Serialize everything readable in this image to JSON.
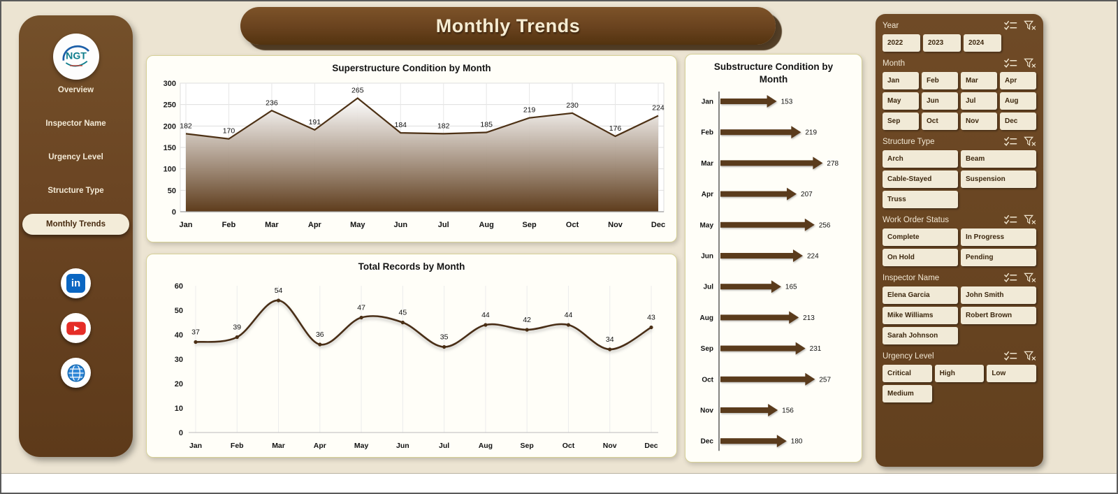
{
  "header": {
    "title": "Monthly Trends"
  },
  "sidebar": {
    "logo_text": "NGT",
    "items": [
      {
        "label": "Overview",
        "active": false
      },
      {
        "label": "Inspector Name",
        "active": false
      },
      {
        "label": "Urgency Level",
        "active": false
      },
      {
        "label": "Structure Type",
        "active": false
      },
      {
        "label": "Monthly Trends",
        "active": true
      }
    ],
    "social_icons": [
      "linkedin",
      "youtube",
      "website"
    ]
  },
  "chart_data": [
    {
      "type": "area",
      "title": "Superstructure Condition by Month",
      "categories": [
        "Jan",
        "Feb",
        "Mar",
        "Apr",
        "May",
        "Jun",
        "Jul",
        "Aug",
        "Sep",
        "Oct",
        "Nov",
        "Dec"
      ],
      "values": [
        182,
        170,
        236,
        191,
        265,
        184,
        182,
        185,
        219,
        230,
        176,
        224
      ],
      "xlabel": "",
      "ylabel": "",
      "ylim": [
        0,
        300
      ],
      "yticks": [
        0,
        50,
        100,
        150,
        200,
        250,
        300
      ],
      "grid": true,
      "legend": "none",
      "line_color": "#4d3115",
      "fill_gradient_top": "#ffffff",
      "fill_gradient_bottom": "#5e3c1c"
    },
    {
      "type": "line",
      "title": "Total Records by Month",
      "categories": [
        "Jan",
        "Feb",
        "Mar",
        "Apr",
        "May",
        "Jun",
        "Jul",
        "Aug",
        "Sep",
        "Oct",
        "Nov",
        "Dec"
      ],
      "values": [
        37,
        39,
        54,
        36,
        47,
        45,
        35,
        44,
        42,
        44,
        34,
        43
      ],
      "xlabel": "",
      "ylabel": "",
      "ylim": [
        0,
        60
      ],
      "yticks": [
        0,
        10,
        20,
        30,
        40,
        50,
        60
      ],
      "smooth": true,
      "grid": "vertical-only",
      "legend": "none",
      "line_color": "#4a2f15"
    },
    {
      "type": "bar",
      "orientation": "horizontal",
      "style": "arrow",
      "title": "Substructure Condition by Month",
      "categories": [
        "Jan",
        "Feb",
        "Mar",
        "Apr",
        "May",
        "Jun",
        "Jul",
        "Aug",
        "Sep",
        "Oct",
        "Nov",
        "Dec"
      ],
      "values": [
        153,
        219,
        278,
        207,
        256,
        224,
        165,
        213,
        231,
        257,
        156,
        180
      ],
      "xlabel": "",
      "ylabel": "",
      "xlim": [
        0,
        300
      ],
      "legend": "none",
      "bar_color": "#5a3a1c"
    }
  ],
  "filters": {
    "slicers": [
      {
        "title": "Year",
        "cols": 3,
        "fixed": true,
        "options": [
          "2022",
          "2023",
          "2024"
        ]
      },
      {
        "title": "Month",
        "cols": 4,
        "fixed": false,
        "options": [
          "Jan",
          "Feb",
          "Mar",
          "Apr",
          "May",
          "Jun",
          "Jul",
          "Aug",
          "Sep",
          "Oct",
          "Nov",
          "Dec"
        ]
      },
      {
        "title": "Structure Type",
        "cols": 2,
        "fixed": false,
        "options": [
          "Arch",
          "Beam",
          "Cable-Stayed",
          "Suspension",
          "Truss"
        ]
      },
      {
        "title": "Work Order Status",
        "cols": 2,
        "fixed": false,
        "options": [
          "Complete",
          "In Progress",
          "On Hold",
          "Pending"
        ]
      },
      {
        "title": "Inspector Name",
        "cols": 2,
        "fixed": false,
        "options": [
          "Elena Garcia",
          "John Smith",
          "Mike Williams",
          "Robert Brown",
          "Sarah Johnson"
        ]
      },
      {
        "title": "Urgency Level",
        "cols": 3,
        "fixed": false,
        "options": [
          "Critical",
          "High",
          "Low",
          "Medium"
        ]
      }
    ]
  },
  "colors": {
    "accent_brown": "#6b4523",
    "button_cream": "#f1ead7",
    "page_bg": "#ece4d2",
    "card_border": "#d6d096"
  }
}
